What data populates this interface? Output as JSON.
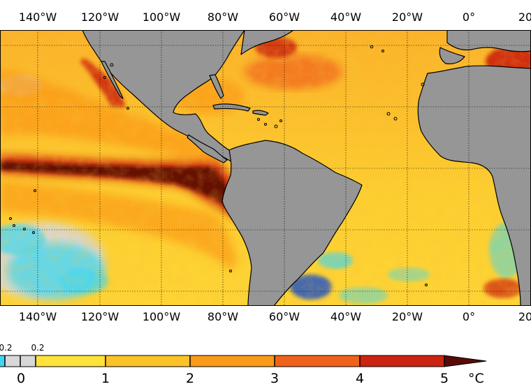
{
  "map": {
    "title": "",
    "longitude_labels": [
      "140°W",
      "120°W",
      "100°W",
      "80°W",
      "60°W",
      "40°W",
      "20°W",
      "0°",
      "20°"
    ],
    "grid_lines": true,
    "land_color": "#969696",
    "coastline_color": "#000000"
  },
  "colorbar": {
    "ticks": [
      "0",
      "1",
      "2",
      "3",
      "4",
      "5"
    ],
    "small_ticks": [
      "0.2",
      "0.2"
    ],
    "unit": "°C",
    "colors": {
      "negative": "#3fd7f0",
      "neutral": "#d8d8d8",
      "0_1": "#ffe23a",
      "1_2": "#fcc228",
      "2_3": "#fb9a18",
      "3_4": "#f0621a",
      "4_5": "#cc2410",
      "above_5": "#5a0a06"
    }
  }
}
